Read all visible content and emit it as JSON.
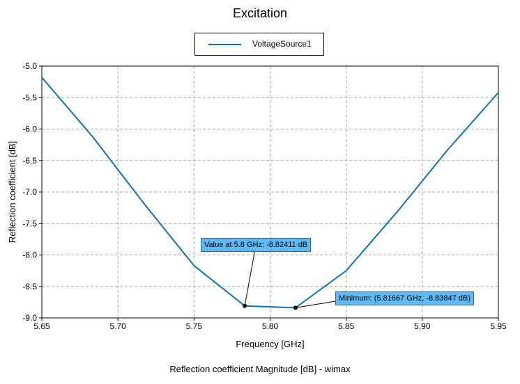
{
  "chart_data": {
    "type": "line",
    "title": "Excitation",
    "caption": "Reflection coefficient Magnitude [dB] - wimax",
    "xlabel": "Frequency [GHz]",
    "ylabel": "Reflection coefficient [dB]",
    "xlim": [
      5.65,
      5.95
    ],
    "ylim": [
      -9.0,
      -5.0
    ],
    "xticks": [
      "5.65",
      "5.70",
      "5.75",
      "5.80",
      "5.85",
      "5.90",
      "5.95"
    ],
    "yticks": [
      "-5.0",
      "-5.5",
      "-6.0",
      "-6.5",
      "-7.0",
      "-7.5",
      "-8.0",
      "-8.5",
      "-9.0"
    ],
    "grid": true,
    "legend_position": "top-center",
    "series": [
      {
        "name": "VoltageSource1",
        "color": "#1170b0",
        "x": [
          5.65,
          5.68333,
          5.71667,
          5.75,
          5.78333,
          5.81667,
          5.85,
          5.88333,
          5.91667,
          5.95
        ],
        "y": [
          -5.18,
          -6.12,
          -7.17,
          -8.17,
          -8.81,
          -8.83847,
          -8.25,
          -7.32,
          -6.33,
          -5.42
        ]
      }
    ],
    "annotations": [
      {
        "text": "Value at 5.8 GHz: -8.82411 dB",
        "x": 5.78333,
        "y": -8.81
      },
      {
        "text": "Minimum: (5.81667 GHz, -8.83847 dB)",
        "x": 5.81667,
        "y": -8.83847
      }
    ]
  }
}
